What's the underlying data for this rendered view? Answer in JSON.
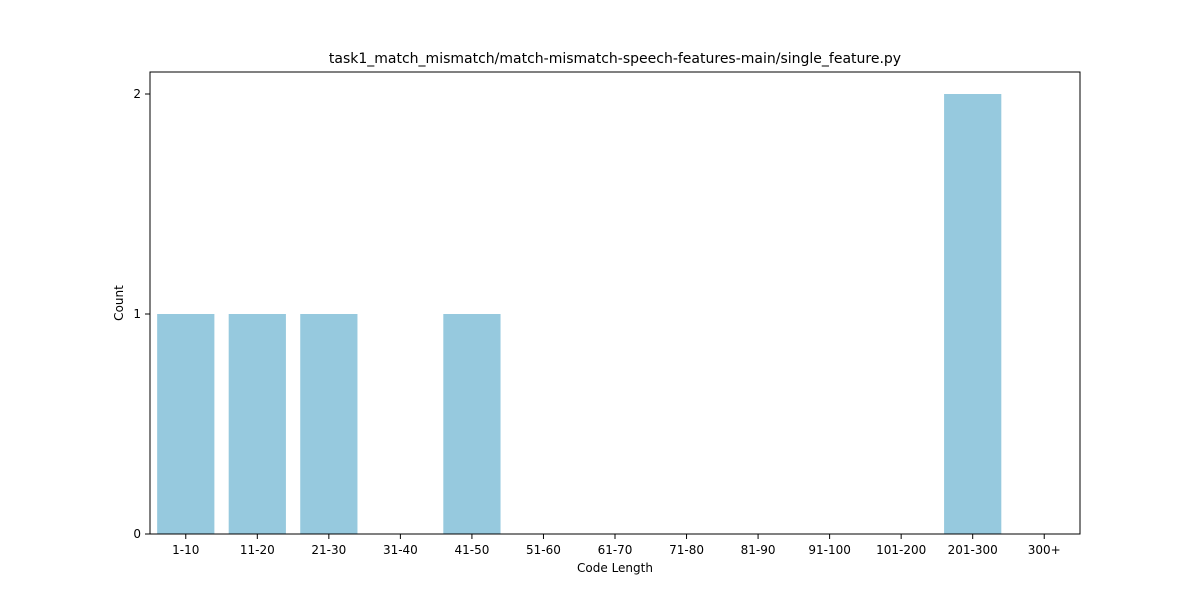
{
  "chart_data": {
    "type": "bar",
    "title": "task1_match_mismatch/match-mismatch-speech-features-main/single_feature.py",
    "xlabel": "Code Length",
    "ylabel": "Count",
    "categories": [
      "1-10",
      "11-20",
      "21-30",
      "31-40",
      "41-50",
      "51-60",
      "61-70",
      "71-80",
      "81-90",
      "91-100",
      "101-200",
      "201-300",
      "300+"
    ],
    "values": [
      1,
      1,
      1,
      0,
      1,
      0,
      0,
      0,
      0,
      0,
      0,
      2,
      0
    ],
    "ylim": [
      0,
      2.1
    ],
    "yticks": [
      0,
      1,
      2
    ],
    "grid": false,
    "legend": "none",
    "bar_color": "#96c9de",
    "axis_color": "#000000"
  }
}
